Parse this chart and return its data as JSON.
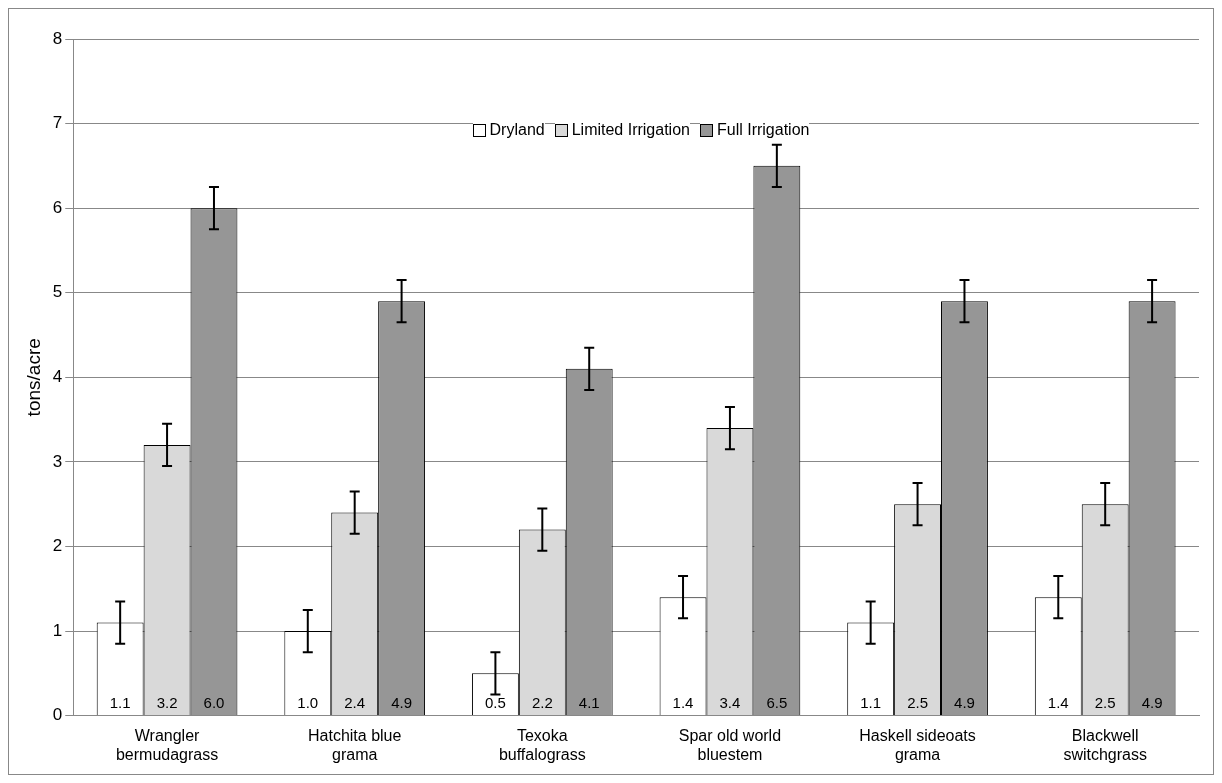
{
  "chart_data": {
    "type": "bar",
    "ylabel": "tons/acre",
    "categories": [
      "Wrangler bermudagrass",
      "Hatchita blue grama",
      "Texoka buffalograss",
      "Spar old world bluestem",
      "Haskell sideoats grama",
      "Blackwell switchgrass"
    ],
    "series": [
      {
        "name": "Dryland",
        "color": "#ffffff",
        "values": [
          1.1,
          1.0,
          0.5,
          1.4,
          1.1,
          1.4
        ],
        "value_labels": [
          "1.1",
          "1.0",
          "0.5",
          "1.4",
          "1.1",
          "1.4"
        ],
        "errors": [
          0.25,
          0.25,
          0.25,
          0.25,
          0.25,
          0.25
        ]
      },
      {
        "name": "Limited Irrigation",
        "color": "#d9d9d9",
        "values": [
          3.2,
          2.4,
          2.2,
          3.4,
          2.5,
          2.5
        ],
        "value_labels": [
          "3.2",
          "2.4",
          "2.2",
          "3.4",
          "2.5",
          "2.5"
        ],
        "errors": [
          0.25,
          0.25,
          0.25,
          0.25,
          0.25,
          0.25
        ]
      },
      {
        "name": "Full Irrigation",
        "color": "#969696",
        "values": [
          6.0,
          4.9,
          4.1,
          6.5,
          4.9,
          4.9
        ],
        "value_labels": [
          "6.0",
          "4.9",
          "4.1",
          "6.5",
          "4.9",
          "4.9"
        ],
        "errors": [
          0.25,
          0.25,
          0.25,
          0.25,
          0.25,
          0.25
        ]
      }
    ],
    "ylim": [
      0,
      8
    ],
    "yticks": [
      0,
      1,
      2,
      3,
      4,
      5,
      6,
      7,
      8
    ],
    "grid": "y",
    "legend": "top"
  }
}
